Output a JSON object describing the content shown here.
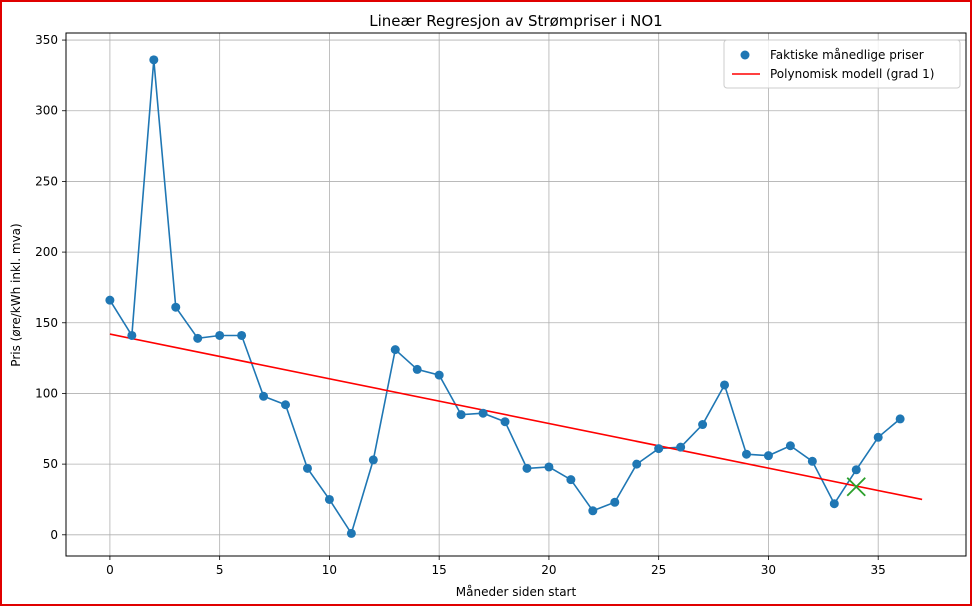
{
  "chart_data": {
    "type": "line",
    "title": "Lineær Regresjon av Strømpriser i NO1",
    "xlabel": "Måneder siden start",
    "ylabel": "Pris (øre/kWh inkl. mva)",
    "xlim": [
      -2,
      39
    ],
    "ylim": [
      -15,
      355
    ],
    "xticks": [
      0,
      5,
      10,
      15,
      20,
      25,
      30,
      35
    ],
    "yticks": [
      0,
      50,
      100,
      150,
      200,
      250,
      300,
      350
    ],
    "grid": true,
    "legend_position": "top-right",
    "series": [
      {
        "name": "Faktiske månedlige priser",
        "type": "scatter-line",
        "color": "#1f77b4",
        "x": [
          0,
          1,
          2,
          3,
          4,
          5,
          6,
          7,
          8,
          9,
          10,
          11,
          12,
          13,
          14,
          15,
          16,
          17,
          18,
          19,
          20,
          21,
          22,
          23,
          24,
          25,
          26,
          27,
          28,
          29,
          30,
          31,
          32,
          33,
          34,
          35,
          36
        ],
        "y": [
          166,
          141,
          336,
          161,
          139,
          141,
          141,
          98,
          92,
          47,
          25,
          1,
          53,
          131,
          117,
          113,
          85,
          86,
          80,
          47,
          48,
          39,
          17,
          23,
          50,
          61,
          62,
          78,
          106,
          57,
          56,
          63,
          52,
          22,
          46,
          69,
          82
        ]
      },
      {
        "name": "Polynomisk modell (grad 1)",
        "type": "line",
        "color": "#ff0000",
        "x": [
          0,
          37
        ],
        "y": [
          142,
          25
        ]
      }
    ],
    "annotations": [
      {
        "type": "x-marker",
        "x": 34,
        "y": 34,
        "color": "#2ca02c"
      }
    ]
  }
}
